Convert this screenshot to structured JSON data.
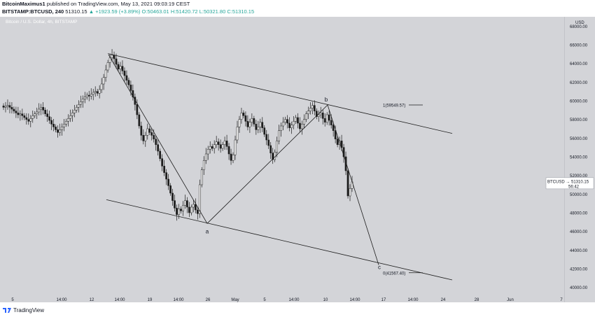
{
  "header": {
    "author": "BitcoinMaximus1",
    "published_text": "published on TradingView.com, May 13, 2021 09:03:19 CEST",
    "symbol": "BITSTAMP:BTCUSD, 240",
    "last": "51310.15",
    "change": "▲ +1923.59 (+3.89%)",
    "ohlc_o": "O:50463.01",
    "ohlc_h": "H:51420.72",
    "ohlc_l": "L:50321.80",
    "ohlc_c": "C:51310.15"
  },
  "chart_title": "Bitcoin / U.S. Dollar, 4h, BITSTAMP",
  "footer": {
    "brand": "TradingView"
  },
  "colors": {
    "background": "#d3d4d8",
    "candle": "#1c1c1c",
    "line": "#1c1c1c",
    "text": "#131722"
  },
  "chart_data": {
    "type": "candlestick",
    "y_unit": "USD",
    "ylim": [
      39000,
      69000
    ],
    "y_ticks": [
      40000,
      42000,
      44000,
      46000,
      48000,
      50000,
      52000,
      54000,
      56000,
      58000,
      60000,
      62000,
      64000,
      66000,
      68000
    ],
    "y_tick_labels": [
      "40000.00",
      "42000.00",
      "44000.00",
      "46000.00",
      "48000.00",
      "50000.00",
      "52000.00",
      "54000.00",
      "56000.00",
      "58000.00",
      "60000.00",
      "62000.00",
      "64000.00",
      "66000.00",
      "68000.00"
    ],
    "x_ticks": [
      "5",
      "14:00",
      "12",
      "14:00",
      "19",
      "14:00",
      "26",
      "May",
      "5",
      "14:00",
      "10",
      "14:00",
      "17",
      "14:00",
      "24",
      "28",
      "Jun",
      "7"
    ],
    "last_price_label": {
      "symbol": "BTCUSD",
      "price": "51310.15",
      "countdown": "56:42",
      "value": 51310.15
    },
    "wave_labels": [
      "a",
      "b",
      "c"
    ],
    "fib_labels": [
      "1(59549.57)",
      "0(41567.40)"
    ],
    "closes": [
      59300,
      59400,
      59500,
      59300,
      59100,
      58900,
      58700,
      58500,
      58600,
      58400,
      58200,
      58000,
      57800,
      58100,
      58400,
      58600,
      58800,
      59100,
      59300,
      59000,
      58600,
      58300,
      57900,
      57500,
      57200,
      56900,
      56600,
      56900,
      57200,
      57500,
      57800,
      58100,
      58400,
      58700,
      59000,
      59300,
      59600,
      59900,
      60200,
      60400,
      60600,
      60500,
      60700,
      60900,
      61000,
      60800,
      61200,
      61800,
      62500,
      63300,
      64100,
      64600,
      64900,
      64500,
      63900,
      63400,
      63700,
      63200,
      62700,
      62200,
      61700,
      61100,
      60400,
      59600,
      58500,
      57300,
      56300,
      55700,
      56300,
      57000,
      56600,
      56300,
      55900,
      55300,
      54600,
      53800,
      53000,
      52300,
      51600,
      50900,
      50100,
      49300,
      48500,
      47800,
      48400,
      48200,
      48800,
      49300,
      48600,
      48000,
      48600,
      48900,
      48300,
      47900,
      51000,
      52600,
      53600,
      54300,
      54800,
      55100,
      54900,
      55300,
      55600,
      55300,
      54900,
      55300,
      55700,
      55100,
      54300,
      53600,
      54200,
      55800,
      57200,
      58000,
      58700,
      58400,
      57800,
      57200,
      57700,
      58100,
      57500,
      56900,
      57200,
      57700,
      57100,
      56400,
      55800,
      55200,
      54400,
      53700,
      54500,
      55700,
      56800,
      57300,
      57700,
      58000,
      57600,
      57100,
      57400,
      57800,
      58200,
      57600,
      57000,
      57500,
      58000,
      58600,
      58900,
      59200,
      59500,
      58900,
      58300,
      58500,
      58700,
      58100,
      57700,
      58500,
      57900,
      57400,
      56800,
      55900,
      55300,
      55700,
      55000,
      54000,
      52500,
      49800,
      50600,
      51310
    ]
  }
}
